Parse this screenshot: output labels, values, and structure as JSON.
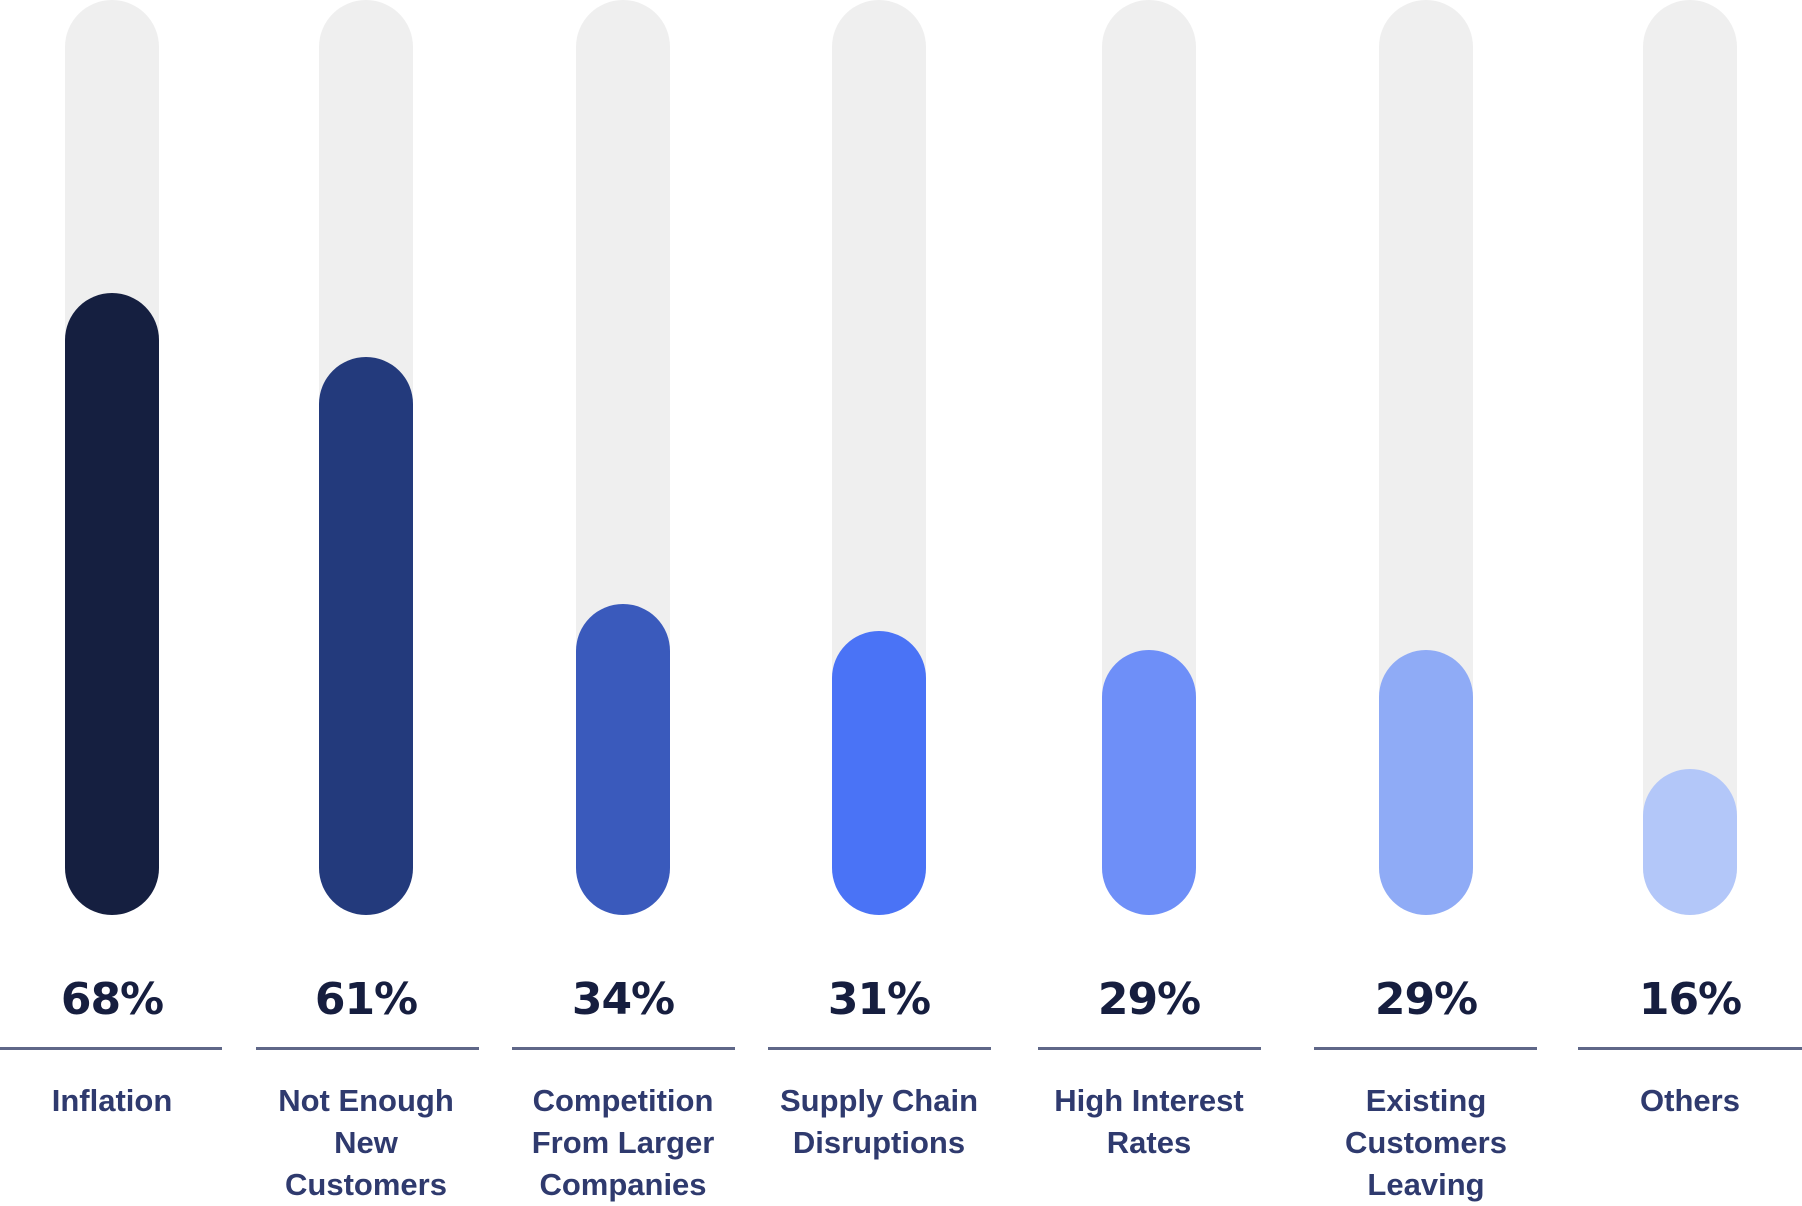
{
  "chart_data": {
    "type": "bar",
    "orientation": "vertical",
    "categories": [
      "Inflation",
      "Not Enough New Customers",
      "Competition From Larger Companies",
      "Supply Chain Disruptions",
      "High Interest Rates",
      "Existing Customers Leaving",
      "Others"
    ],
    "category_lines": [
      [
        "Inflation"
      ],
      [
        "Not Enough",
        "New",
        "Customers"
      ],
      [
        "Competition",
        "From Larger",
        "Companies"
      ],
      [
        "Supply Chain",
        "Disruptions"
      ],
      [
        "High Interest",
        "Rates"
      ],
      [
        "Existing",
        "Customers",
        "Leaving"
      ],
      [
        "Others"
      ]
    ],
    "values": [
      68,
      61,
      34,
      31,
      29,
      29,
      16
    ],
    "value_labels": [
      "68%",
      "61%",
      "34%",
      "31%",
      "29%",
      "29%",
      "16%"
    ],
    "ylim": [
      0,
      100
    ],
    "grid": false,
    "colors": [
      "#151f40",
      "#233a7c",
      "#3a5abc",
      "#4a73f6",
      "#6e8ff8",
      "#8fabf6",
      "#b3c7f9"
    ],
    "track_color": "#efefef"
  }
}
